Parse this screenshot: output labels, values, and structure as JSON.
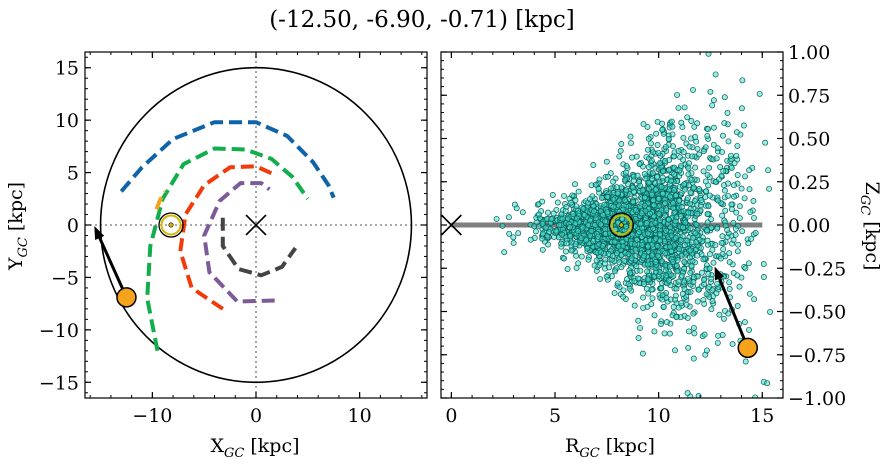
{
  "title": "(-12.50, -6.90, -0.71) [kpc]",
  "chart_data": [
    {
      "type": "line",
      "panel": "galactic-plane",
      "xlabel_main": "X",
      "xlabel_sub": "GC",
      "xlabel_unit": " [kpc]",
      "ylabel_main": "Y",
      "ylabel_sub": "GC",
      "ylabel_unit": " [kpc]",
      "xlim": [
        -16.5,
        16.5
      ],
      "ylim": [
        -16.5,
        16.5
      ],
      "xticks": [
        -10,
        0,
        10
      ],
      "yticks": [
        -15,
        -10,
        -5,
        0,
        5,
        10,
        15
      ],
      "x_tick_labels": [
        "−10",
        "0",
        "10"
      ],
      "y_tick_labels": [
        "−15",
        "−10",
        "−5",
        "0",
        "5",
        "10",
        "15"
      ],
      "boundary_circle": {
        "cx": 0,
        "cy": 0,
        "r": 15,
        "color": "#000000"
      },
      "galactic_center": {
        "x": 0,
        "y": 0,
        "marker": "x"
      },
      "sun": {
        "x": -8.2,
        "y": 0.0,
        "marker": "sun-symbol",
        "color": "#d4b800"
      },
      "object": {
        "x": -12.5,
        "y": -6.9,
        "color": "#f5a31a"
      },
      "velocity_arrow": {
        "from": [
          -12.5,
          -6.9
        ],
        "to": [
          -15.6,
          -0.1
        ]
      },
      "spiral_arms": [
        {
          "color": "#0f63a8",
          "points": [
            [
              -13,
              3.2
            ],
            [
              -11,
              5.5
            ],
            [
              -8,
              8.2
            ],
            [
              -4,
              9.8
            ],
            [
              0,
              9.8
            ],
            [
              3,
              8.5
            ],
            [
              5.5,
              6
            ],
            [
              7,
              3.8
            ],
            [
              7.5,
              2.6
            ]
          ]
        },
        {
          "color": "#12ad4c",
          "points": [
            [
              -9.5,
              -12
            ],
            [
              -10.5,
              -7
            ],
            [
              -10.2,
              -2
            ],
            [
              -9,
              2.5
            ],
            [
              -7,
              5.8
            ],
            [
              -4,
              7.3
            ],
            [
              -1,
              7.2
            ],
            [
              1.5,
              6.3
            ],
            [
              3.5,
              4.6
            ],
            [
              5,
              2.5
            ]
          ]
        },
        {
          "color": "#f5a31a",
          "points": [
            [
              -9.6,
              1.5
            ],
            [
              -9.3,
              2.3
            ],
            [
              -8.8,
              3.2
            ]
          ]
        },
        {
          "color": "#f23a0a",
          "points": [
            [
              -3.2,
              -8
            ],
            [
              -6.2,
              -6
            ],
            [
              -7.3,
              -2.5
            ],
            [
              -6.8,
              1
            ],
            [
              -5,
              3.8
            ],
            [
              -2.5,
              5.5
            ],
            [
              0,
              5.6
            ],
            [
              1.8,
              4.8
            ]
          ]
        },
        {
          "color": "#7d5b99",
          "points": [
            [
              1.8,
              -7.2
            ],
            [
              -1.8,
              -7.3
            ],
            [
              -4.5,
              -4.5
            ],
            [
              -5,
              -1
            ],
            [
              -3.5,
              2.3
            ],
            [
              -1.5,
              4
            ],
            [
              0.5,
              4
            ],
            [
              1.3,
              3.4
            ]
          ]
        },
        {
          "color": "#444444",
          "points": [
            [
              -3.2,
              0.7
            ],
            [
              -3.2,
              -2
            ],
            [
              -1.7,
              -4.2
            ],
            [
              0.5,
              -4.8
            ],
            [
              2.5,
              -4
            ],
            [
              3.8,
              -2.2
            ]
          ]
        }
      ]
    },
    {
      "type": "scatter",
      "panel": "meridional-plane",
      "xlabel_main": "R",
      "xlabel_sub": "GC",
      "xlabel_unit": " [kpc]",
      "ylabel_main": "Z",
      "ylabel_sub": "GC",
      "ylabel_unit": " [kpc]",
      "xlim": [
        -0.5,
        16.0
      ],
      "ylim": [
        -1.0,
        1.0
      ],
      "xticks": [
        0,
        5,
        10,
        15
      ],
      "yticks": [
        -1.0,
        -0.75,
        -0.5,
        -0.25,
        0.0,
        0.25,
        0.5,
        0.75,
        1.0
      ],
      "x_tick_labels": [
        "0",
        "5",
        "10",
        "15"
      ],
      "y_tick_labels": [
        "−1.00",
        "−0.75",
        "−0.50",
        "−0.25",
        "0.00",
        "0.25",
        "0.50",
        "0.75",
        "1.00"
      ],
      "y_axis_side": "right",
      "disk_line": {
        "x_from": 0,
        "x_to": 15,
        "y": 0,
        "color": "#7f7f7f"
      },
      "galactic_center": {
        "x": 0,
        "y": 0,
        "marker": "x"
      },
      "sun": {
        "x": 8.2,
        "y": 0.0,
        "marker": "sun-symbol",
        "color": "#d4b800"
      },
      "object": {
        "x": 14.3,
        "y": -0.71,
        "color": "#f5a31a"
      },
      "velocity_arrow": {
        "from": [
          14.3,
          -0.71
        ],
        "to": [
          12.7,
          -0.24
        ]
      },
      "point_color": "#40e0d0",
      "point_count": 2500,
      "distribution": {
        "r_min": 1.5,
        "r_center": 8.4,
        "r_max": 15.5,
        "z_spread_inner": 0.06,
        "z_spread_outer": 0.6
      }
    }
  ]
}
